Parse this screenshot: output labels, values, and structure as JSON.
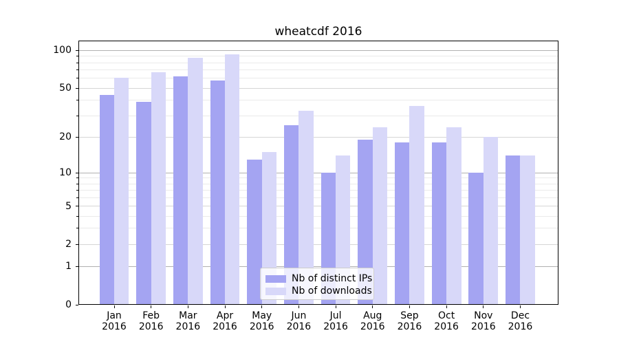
{
  "title": "wheatcdf 2016",
  "chart_data": {
    "type": "bar",
    "title": "wheatcdf 2016",
    "categories": [
      "Jan",
      "Feb",
      "Mar",
      "Apr",
      "May",
      "Jun",
      "Jul",
      "Aug",
      "Sep",
      "Oct",
      "Nov",
      "Dec"
    ],
    "x_tick_year": "2016",
    "series": [
      {
        "name": "Nb of distinct IPs",
        "color": "#a4a4f2",
        "values": [
          44,
          39,
          62,
          58,
          13,
          25,
          10,
          19,
          18,
          18,
          10,
          14
        ]
      },
      {
        "name": "Nb of downloads",
        "color": "#d8d8f9",
        "values": [
          61,
          67,
          88,
          93,
          15,
          33,
          14,
          24,
          36,
          24,
          20,
          14
        ]
      }
    ],
    "yscale": "log1p",
    "ylim": [
      0,
      120
    ],
    "y_major_ticks": [
      100,
      50,
      20,
      10,
      5,
      2,
      1,
      0
    ],
    "y_minor_ticks": [
      3,
      4,
      6,
      7,
      8,
      9,
      30,
      40,
      60,
      70,
      80,
      90
    ],
    "grid": true,
    "legend_position": "lower center"
  }
}
